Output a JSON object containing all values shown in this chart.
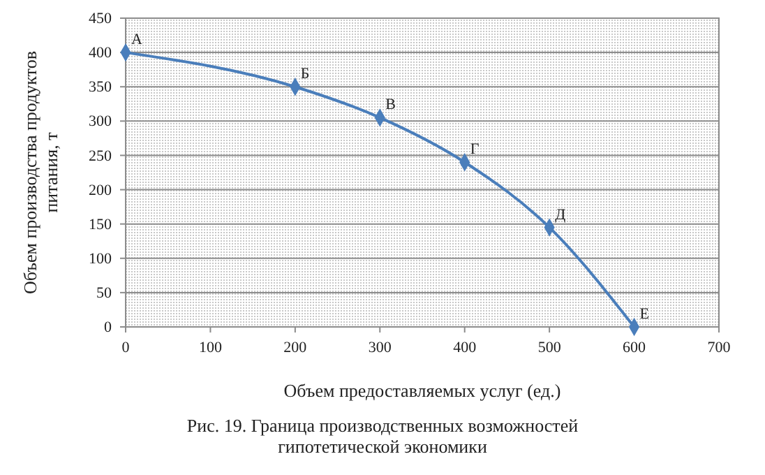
{
  "chart_data": {
    "type": "line",
    "xlabel": "Объем предоставляемых услуг (ед.)",
    "ylabel": "Объем производства продуктов питания, т",
    "x": [
      0,
      200,
      300,
      400,
      500,
      600
    ],
    "series": [
      {
        "color": "#4a7ebb",
        "values": [
          400,
          350,
          305,
          240,
          145,
          0
        ]
      }
    ],
    "xlim": [
      0,
      700
    ],
    "xticks": [
      0,
      100,
      200,
      300,
      400,
      500,
      600,
      700
    ],
    "ylim": [
      0,
      450
    ],
    "yticks": [
      0,
      50,
      100,
      150,
      200,
      250,
      300,
      350,
      400,
      450
    ],
    "grid": "y",
    "marker": "diamond",
    "line_style": "solid",
    "annotations": [
      {
        "text": "А",
        "x": 0,
        "y": 400
      },
      {
        "text": "Б",
        "x": 200,
        "y": 350
      },
      {
        "text": "В",
        "x": 300,
        "y": 305
      },
      {
        "text": "Г",
        "x": 400,
        "y": 240
      },
      {
        "text": "Д",
        "x": 500,
        "y": 145
      },
      {
        "text": "Е",
        "x": 600,
        "y": 0
      },
      "Рис. 19. Граница производственных возможностей гипотетической экономики"
    ]
  }
}
